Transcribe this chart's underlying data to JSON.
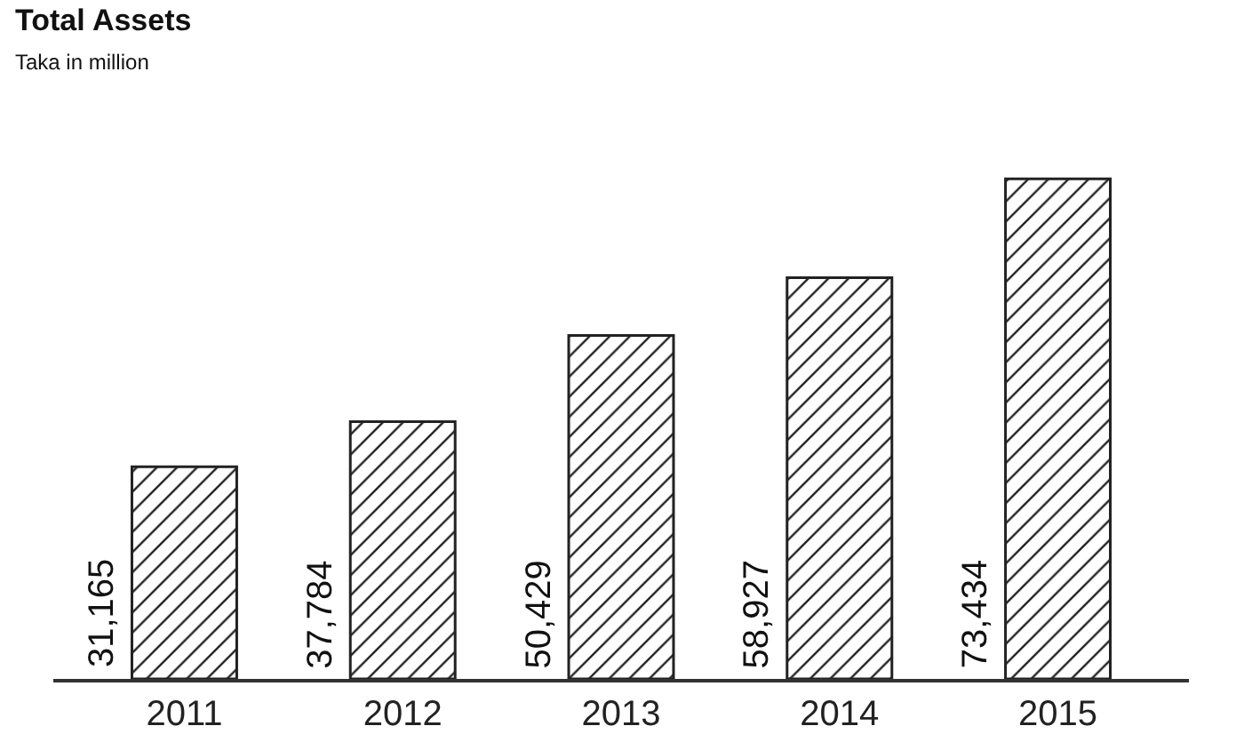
{
  "chart_data": {
    "type": "bar",
    "title": "Total Assets",
    "subtitle": "Taka in million",
    "categories": [
      "2011",
      "2012",
      "2013",
      "2014",
      "2015"
    ],
    "values": [
      31165,
      37784,
      50429,
      58927,
      73434
    ],
    "value_labels": [
      "31,165",
      "37,784",
      "50,429",
      "58,927",
      "73,434"
    ],
    "color": "#222222"
  }
}
